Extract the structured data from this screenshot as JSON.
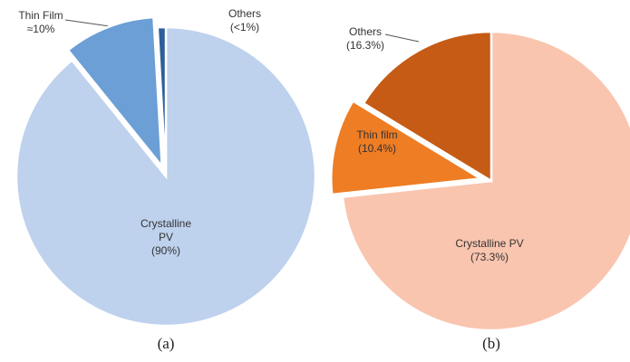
{
  "chart_data": [
    {
      "type": "pie",
      "caption": "(a)",
      "categories": [
        "Crystalline PV",
        "Thin Film",
        "Others"
      ],
      "values": [
        90,
        10,
        0.9
      ],
      "value_labels": [
        "(90%)",
        "≈10%",
        "(<1%)"
      ],
      "colors": [
        "#bed1ed",
        "#6b9fd5",
        "#2f5f99"
      ],
      "explode": [
        false,
        true,
        false
      ]
    },
    {
      "type": "pie",
      "caption": "(b)",
      "categories": [
        "Crystalline PV",
        "Thin film",
        "Others"
      ],
      "values": [
        73.3,
        10.4,
        16.3
      ],
      "value_labels": [
        "(73.3%)",
        "(10.4%)",
        "(16.3%)"
      ],
      "colors": [
        "#f9c5af",
        "#ee7d24",
        "#c55b14"
      ],
      "explode": [
        false,
        true,
        false
      ]
    }
  ]
}
